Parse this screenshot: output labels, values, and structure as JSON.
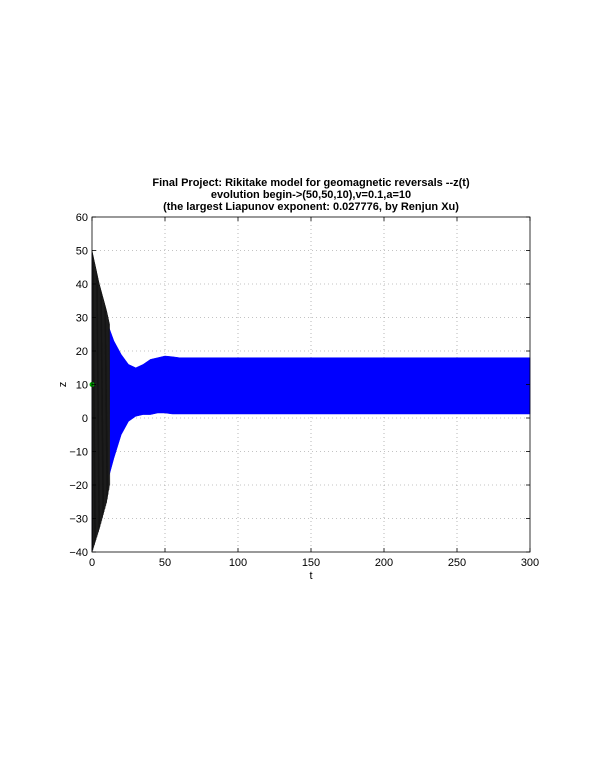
{
  "chart_data": {
    "type": "line",
    "title_lines": [
      "Final Project: Rikitake model for geomagnetic reversals --z(t)",
      "evolution begin->(50,50,10),v=0.1,a=10",
      "(the largest Liapunov exponent: 0.027776, by Renjun Xu)"
    ],
    "xlabel": "t",
    "ylabel": "z",
    "xlim": [
      0,
      300
    ],
    "ylim": [
      -40,
      60
    ],
    "xticks": [
      0,
      50,
      100,
      150,
      200,
      250,
      300
    ],
    "yticks": [
      -40,
      -30,
      -20,
      -10,
      0,
      10,
      20,
      30,
      40,
      50,
      60
    ],
    "grid": true,
    "colors": {
      "blue_band": "#0000ff",
      "black_transient": "#000000",
      "start_marker": "#00aa00",
      "grid": "#888888"
    },
    "series": [
      {
        "color": "#0000ff",
        "kind": "oscillation envelope",
        "t": [
          0,
          5,
          10,
          15,
          20,
          25,
          30,
          35,
          40,
          45,
          50,
          55,
          60,
          300
        ],
        "upper": [
          49,
          38,
          29,
          23,
          19,
          16,
          15,
          16,
          17.5,
          18,
          18.5,
          18.3,
          18,
          18
        ],
        "lower": [
          -40,
          -30,
          -20,
          -12,
          -5,
          -1,
          0.5,
          1,
          1,
          1.5,
          1.5,
          1.2,
          1.2,
          1.2
        ]
      },
      {
        "color": "#000000",
        "kind": "initial transient envelope",
        "t": [
          0,
          5,
          10,
          12
        ],
        "upper": [
          50,
          40,
          32,
          28
        ],
        "lower": [
          -40,
          -33,
          -25,
          -20
        ]
      }
    ],
    "start_point": {
      "t": 0,
      "z": 10
    }
  }
}
